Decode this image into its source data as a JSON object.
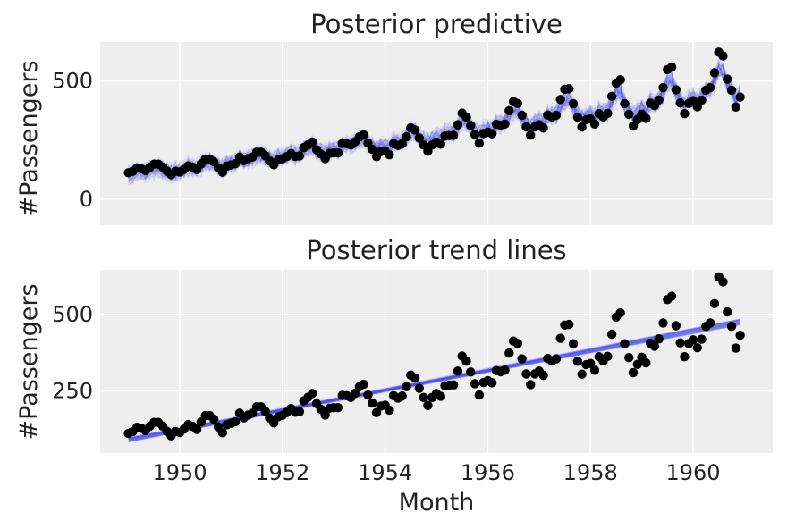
{
  "chart_data": [
    {
      "type": "scatter",
      "title": "Posterior predictive",
      "xlabel": "",
      "ylabel": "#Passengers",
      "xlim": [
        1948.45,
        1961.55
      ],
      "ylim": [
        -110,
        665
      ],
      "xticks": [
        "1950",
        "1952",
        "1954",
        "1956",
        "1958",
        "1960"
      ],
      "xticks_shown": false,
      "yticks": [
        "0",
        "500"
      ],
      "grid": true,
      "background": "#eeeeee",
      "band_color": "#4444ee",
      "point_color": "#000000",
      "series": [
        {
          "kind": "posterior-predictive-samples",
          "note_values": "band of sampled predictive lines around observed data"
        }
      ]
    },
    {
      "type": "scatter",
      "title": "Posterior trend lines",
      "xlabel": "Month",
      "ylabel": "#Passengers",
      "xlim": [
        1948.45,
        1961.55
      ],
      "ylim": [
        48,
        645
      ],
      "xticks": [
        "1950",
        "1952",
        "1954",
        "1956",
        "1958",
        "1960"
      ],
      "yticks": [
        "250",
        "500"
      ],
      "grid": true,
      "background": "#eeeeee",
      "trend_color": "#4444ee",
      "trend_start": [
        1949.0,
        92
      ],
      "trend_end": [
        1960.92,
        475
      ],
      "point_color": "#000000"
    }
  ],
  "observed": {
    "x_start": 1949.0,
    "x_step": 0.08333,
    "values": [
      112,
      118,
      132,
      129,
      121,
      135,
      148,
      148,
      136,
      119,
      104,
      118,
      115,
      126,
      141,
      135,
      125,
      149,
      170,
      170,
      158,
      133,
      114,
      140,
      145,
      150,
      178,
      163,
      172,
      178,
      199,
      199,
      184,
      162,
      146,
      166,
      171,
      180,
      193,
      181,
      183,
      218,
      230,
      242,
      209,
      191,
      172,
      194,
      196,
      196,
      236,
      235,
      229,
      243,
      264,
      272,
      237,
      211,
      180,
      201,
      204,
      188,
      235,
      227,
      234,
      264,
      302,
      293,
      259,
      229,
      203,
      229,
      242,
      233,
      267,
      269,
      270,
      315,
      364,
      347,
      312,
      274,
      237,
      278,
      284,
      277,
      317,
      313,
      318,
      374,
      413,
      405,
      355,
      306,
      271,
      306,
      315,
      301,
      356,
      348,
      355,
      422,
      465,
      467,
      404,
      347,
      305,
      336,
      340,
      318,
      362,
      348,
      363,
      435,
      491,
      505,
      404,
      359,
      310,
      337,
      360,
      342,
      406,
      396,
      420,
      472,
      548,
      559,
      463,
      407,
      362,
      405,
      417,
      391,
      419,
      461,
      472,
      535,
      622,
      606,
      508,
      461,
      390,
      432
    ]
  }
}
